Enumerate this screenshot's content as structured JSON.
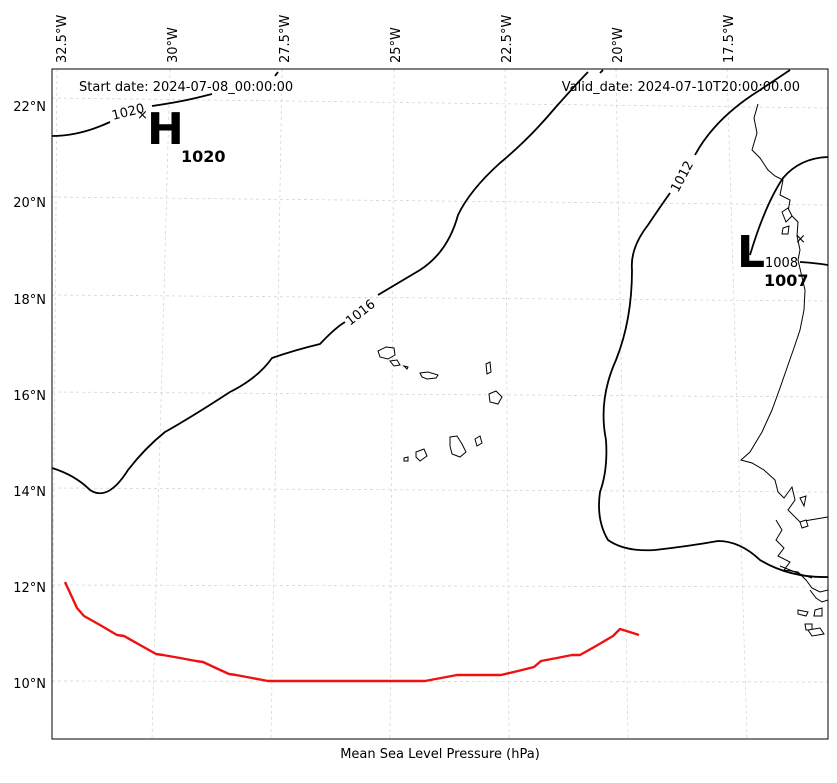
{
  "header": {
    "start_date": "Start date: 2024-07-08_00:00:00",
    "valid_date": "Valid_date: 2024-07-10T20:00:00.00"
  },
  "caption": "Mean Sea Level Pressure (hPa)",
  "longitude_labels": [
    "32.5°W",
    "30°W",
    "27.5°W",
    "25°W",
    "22.5°W",
    "20°W",
    "17.5°W"
  ],
  "latitude_labels": [
    "22°N",
    "20°N",
    "18°N",
    "16°N",
    "14°N",
    "12°N",
    "10°N"
  ],
  "contour_labels": [
    "1020",
    "1016",
    "1012",
    "1008"
  ],
  "pressure_centers": [
    {
      "type": "H",
      "value": "1020"
    },
    {
      "type": "L",
      "value": "1007"
    }
  ],
  "colors": {
    "contour": "#000000",
    "track": "#ee1111",
    "grid": "#d0d0d0"
  }
}
